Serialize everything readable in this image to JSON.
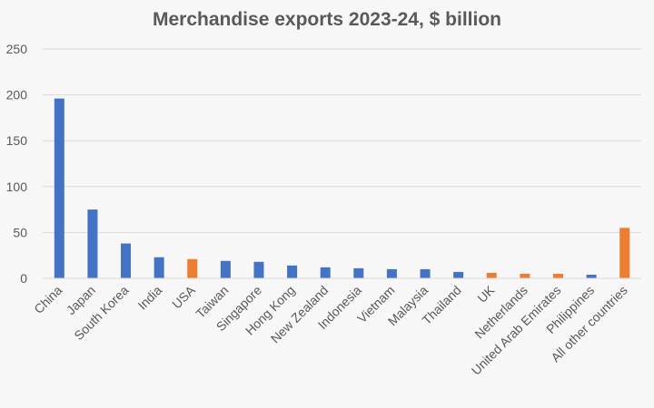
{
  "chart_data": {
    "type": "bar",
    "title": "Merchandise exports 2023-24, $ billion",
    "xlabel": "",
    "ylabel": "",
    "ylim": [
      0,
      250
    ],
    "yticks": [
      0,
      50,
      100,
      150,
      200,
      250
    ],
    "grid": true,
    "legend": "none",
    "categories": [
      "China",
      "Japan",
      "South Korea",
      "India",
      "USA",
      "Taiwan",
      "Singapore",
      "Hong Kong",
      "New Zealand",
      "Indonesia",
      "Vietnam",
      "Malaysia",
      "Thailand",
      "UK",
      "Netherlands",
      "United Arab Emirates",
      "Philippines",
      "All other countries"
    ],
    "values": [
      196,
      75,
      38,
      23,
      21,
      19,
      18,
      14,
      12,
      11,
      10,
      10,
      7,
      6,
      5,
      5,
      4,
      55
    ],
    "bar_colors": [
      "#4472c4",
      "#4472c4",
      "#4472c4",
      "#4472c4",
      "#ed7d31",
      "#4472c4",
      "#4472c4",
      "#4472c4",
      "#4472c4",
      "#4472c4",
      "#4472c4",
      "#4472c4",
      "#4472c4",
      "#ed7d31",
      "#ed7d31",
      "#ed7d31",
      "#4472c4",
      "#ed7d31"
    ],
    "colors": {
      "blue": "#4472c4",
      "orange": "#ed7d31",
      "grid": "#d9d9d9",
      "text": "#595959"
    }
  }
}
